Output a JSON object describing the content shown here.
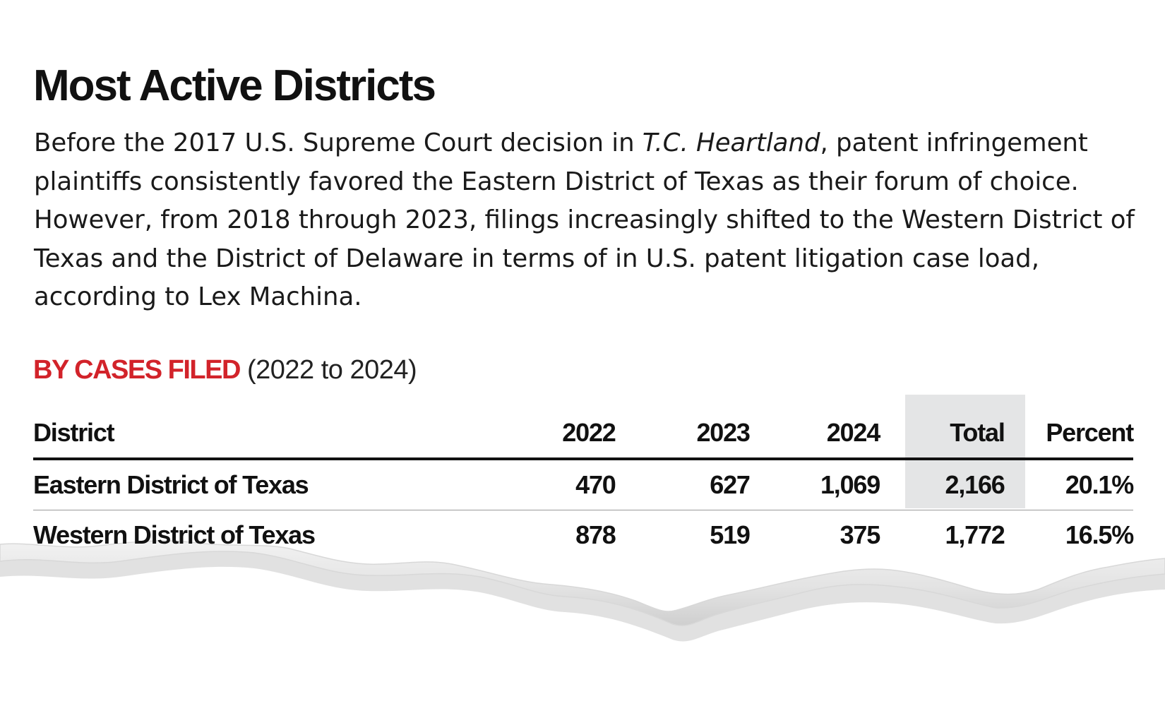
{
  "title": "Most Active Districts",
  "intro": {
    "before": "Before the 2017 U.S. Supreme Court decision in ",
    "case_name": "T.C. Heartland",
    "after": ", patent infringement plaintiffs consistently favored the Eastern District of Texas as their forum of choice. However, from 2018 through 2023, filings increasingly shifted to the Western District of Texas and the District of Delaware in terms of in U.S. patent litigation case load, according to Lex Machina."
  },
  "subhead": {
    "lead": "BY CASES FILED",
    "range": "(2022 to 2024)"
  },
  "colors": {
    "accent": "#d2232a",
    "total_column_bg": "#e4e5e6",
    "text": "#111111"
  },
  "chart_data": {
    "type": "table",
    "columns": [
      "District",
      "2022",
      "2023",
      "2024",
      "Total",
      "Percent"
    ],
    "rows": [
      [
        "Eastern District of Texas",
        "470",
        "627",
        "1,069",
        "2,166",
        "20.1%"
      ],
      [
        "Western District of Texas",
        "878",
        "519",
        "375",
        "1,772",
        "16.5%"
      ]
    ]
  }
}
